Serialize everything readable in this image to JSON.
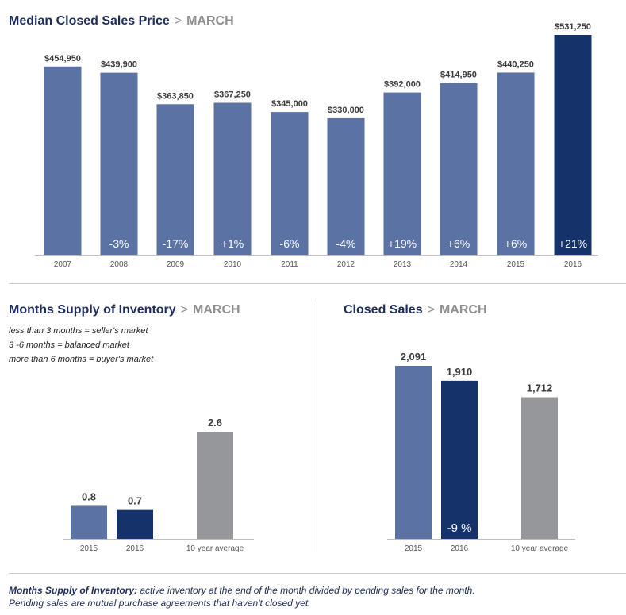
{
  "colors": {
    "blue": "#5a72a4",
    "navy": "#15336a",
    "gray": "#96979b",
    "title": "#1f2d5a",
    "muted": "#8e8f92"
  },
  "sections": {
    "price": {
      "title": "Median Closed Sales Price",
      "separator": ">",
      "month": "MARCH"
    },
    "supply": {
      "title": "Months Supply of Inventory",
      "separator": ">",
      "month": "MARCH"
    },
    "sales": {
      "title": "Closed Sales",
      "separator": ">",
      "month": "MARCH"
    }
  },
  "legend": {
    "line1": "less than 3 months = seller's market",
    "line2": "3 -6 months = balanced market",
    "line3": "more than 6 months = buyer's market"
  },
  "footnote": {
    "term": "Months Supply of Inventory:",
    "text": " active inventory at the end of the month divided by pending sales for the month. Pending sales are mutual purchase agreements that haven't closed yet."
  },
  "chart_data": [
    {
      "type": "bar",
      "title": "Median Closed Sales Price > MARCH",
      "categories": [
        "2007",
        "2008",
        "2009",
        "2010",
        "2011",
        "2012",
        "2013",
        "2014",
        "2015",
        "2016"
      ],
      "values": [
        454950,
        439900,
        363850,
        367250,
        345000,
        330000,
        392000,
        414950,
        440250,
        531250
      ],
      "value_labels": [
        "$454,950",
        "$439,900",
        "$363,850",
        "$367,250",
        "$345,000",
        "$330,000",
        "$392,000",
        "$414,950",
        "$440,250",
        "$531,250"
      ],
      "change_labels": [
        "",
        "-3%",
        "-17%",
        "+1%",
        "-6%",
        "-4%",
        "+19%",
        "+6%",
        "+6%",
        "+21%"
      ],
      "bar_colors": [
        "blue",
        "blue",
        "blue",
        "blue",
        "blue",
        "blue",
        "blue",
        "blue",
        "blue",
        "navy"
      ]
    },
    {
      "type": "bar",
      "title": "Months Supply of Inventory > MARCH",
      "categories": [
        "2015",
        "2016",
        "10 year average"
      ],
      "values": [
        0.8,
        0.7,
        2.6
      ],
      "value_labels": [
        "0.8",
        "0.7",
        "2.6"
      ],
      "change_labels": [
        "",
        "",
        ""
      ],
      "bar_colors": [
        "blue",
        "navy",
        "gray"
      ]
    },
    {
      "type": "bar",
      "title": "Closed Sales > MARCH",
      "categories": [
        "2015",
        "2016",
        "10 year average"
      ],
      "values": [
        2091,
        1910,
        1712
      ],
      "value_labels": [
        "2,091",
        "1,910",
        "1,712"
      ],
      "change_labels": [
        "",
        "-9 %",
        ""
      ],
      "bar_colors": [
        "blue",
        "navy",
        "gray"
      ]
    }
  ]
}
